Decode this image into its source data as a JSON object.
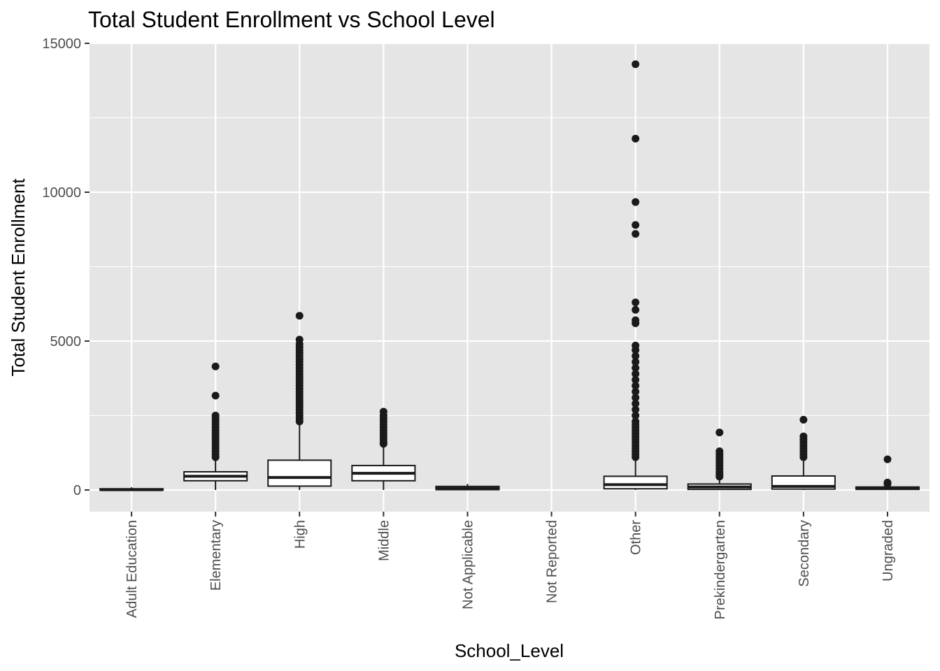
{
  "chart_data": {
    "type": "boxplot",
    "title": "Total Student Enrollment vs School Level",
    "xlabel": "School_Level",
    "ylabel": "Total Student Enrollment",
    "ylim": [
      -700,
      15000
    ],
    "yticks": [
      0,
      5000,
      10000,
      15000
    ],
    "grid": true,
    "legend": "none",
    "colors": {
      "panel": "#e5e5e5",
      "grid": "#ffffff",
      "box_fill": "#ffffff",
      "box_stroke": "#1a1a1a",
      "outlier": "#1a1a1a",
      "tick_text": "#4d4d4d"
    },
    "categories": [
      "Adult Education",
      "Elementary",
      "High",
      "Middle",
      "Not Applicable",
      "Not Reported",
      "Other",
      "Prekindergarten",
      "Secondary",
      "Ungraded"
    ],
    "boxes": [
      {
        "category": "Adult Education",
        "min": 0,
        "q1": 0,
        "median": 10,
        "q3": 40,
        "max": 90,
        "outliers": []
      },
      {
        "category": "Elementary",
        "min": 0,
        "q1": 310,
        "median": 460,
        "q3": 610,
        "max": 1060,
        "outliers": [
          1100,
          1200,
          1300,
          1400,
          1500,
          1600,
          1700,
          1800,
          1900,
          2000,
          2100,
          2200,
          2300,
          2400,
          2500,
          3170,
          4150
        ]
      },
      {
        "category": "High",
        "min": 0,
        "q1": 130,
        "median": 420,
        "q3": 1000,
        "max": 2280,
        "outliers": [
          2300,
          2400,
          2500,
          2600,
          2700,
          2800,
          2900,
          3000,
          3100,
          3200,
          3300,
          3400,
          3500,
          3600,
          3700,
          3800,
          3900,
          4000,
          4100,
          4200,
          4300,
          4400,
          4500,
          4600,
          4700,
          4800,
          4900,
          5050,
          5850
        ]
      },
      {
        "category": "Middle",
        "min": 0,
        "q1": 310,
        "median": 560,
        "q3": 820,
        "max": 1500,
        "outliers": [
          1550,
          1600,
          1700,
          1800,
          1900,
          2000,
          2100,
          2200,
          2300,
          2400,
          2500,
          2630
        ]
      },
      {
        "category": "Not Applicable",
        "min": 0,
        "q1": 10,
        "median": 50,
        "q3": 120,
        "max": 200,
        "outliers": []
      },
      {
        "category": "Not Reported",
        "min": null,
        "q1": null,
        "median": null,
        "q3": null,
        "max": null,
        "outliers": []
      },
      {
        "category": "Other",
        "min": 0,
        "q1": 40,
        "median": 180,
        "q3": 460,
        "max": 1060,
        "outliers": [
          1100,
          1200,
          1300,
          1400,
          1500,
          1600,
          1700,
          1800,
          1900,
          2000,
          2100,
          2200,
          2300,
          2500,
          2700,
          2900,
          3100,
          3300,
          3500,
          3700,
          3900,
          4100,
          4300,
          4500,
          4700,
          4850,
          5600,
          5700,
          6050,
          6300,
          8600,
          8900,
          9670,
          11800,
          14300
        ]
      },
      {
        "category": "Prekindergarten",
        "min": 0,
        "q1": 20,
        "median": 100,
        "q3": 200,
        "max": 350,
        "outliers": [
          450,
          520,
          600,
          700,
          800,
          900,
          1000,
          1100,
          1200,
          1300,
          1930
        ]
      },
      {
        "category": "Secondary",
        "min": 0,
        "q1": 30,
        "median": 120,
        "q3": 470,
        "max": 1000,
        "outliers": [
          1100,
          1200,
          1300,
          1400,
          1500,
          1600,
          1700,
          1800,
          2360
        ]
      },
      {
        "category": "Ungraded",
        "min": 0,
        "q1": 20,
        "median": 60,
        "q3": 100,
        "max": 150,
        "outliers": [
          200,
          250,
          1030
        ]
      }
    ]
  }
}
